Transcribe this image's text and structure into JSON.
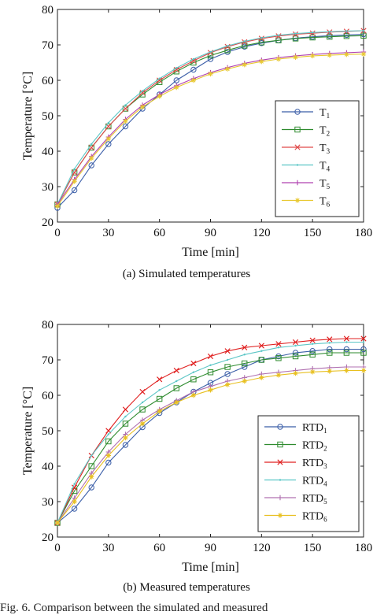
{
  "chart_data": [
    {
      "type": "line",
      "caption": "(a) Simulated temperatures",
      "xlabel": "Time [min]",
      "ylabel": "Temperature [°C]",
      "xlim": [
        0,
        180
      ],
      "ylim": [
        20,
        80
      ],
      "xticks": [
        0,
        30,
        60,
        90,
        120,
        150,
        180
      ],
      "yticks": [
        20,
        30,
        40,
        50,
        60,
        70,
        80
      ],
      "grid": false,
      "legend_position": "bottom-right",
      "series": [
        {
          "name": "T1",
          "base": "T",
          "sub": "1",
          "color": "#3b5ea8",
          "marker": "circle",
          "x": [
            0,
            10,
            20,
            30,
            40,
            50,
            60,
            70,
            80,
            90,
            100,
            110,
            120,
            130,
            140,
            150,
            160,
            170,
            180
          ],
          "y": [
            24,
            29,
            36,
            42,
            47,
            52,
            56,
            60,
            63,
            66,
            68,
            69.5,
            70.5,
            71.3,
            71.9,
            72.3,
            72.6,
            72.8,
            73
          ]
        },
        {
          "name": "T2",
          "base": "T",
          "sub": "2",
          "color": "#2e8b2e",
          "marker": "square",
          "x": [
            0,
            10,
            20,
            30,
            40,
            50,
            60,
            70,
            80,
            90,
            100,
            110,
            120,
            130,
            140,
            150,
            160,
            170,
            180
          ],
          "y": [
            25,
            34,
            41,
            47,
            52,
            56,
            59.5,
            62.5,
            65,
            67,
            68.5,
            69.8,
            70.7,
            71.3,
            71.8,
            72.1,
            72.3,
            72.5,
            72.6
          ]
        },
        {
          "name": "T3",
          "base": "T",
          "sub": "3",
          "color": "#e04a4a",
          "marker": "x",
          "x": [
            0,
            10,
            20,
            30,
            40,
            50,
            60,
            70,
            80,
            90,
            100,
            110,
            120,
            130,
            140,
            150,
            160,
            170,
            180
          ],
          "y": [
            25,
            34,
            41,
            47,
            52,
            56.5,
            60,
            63,
            65.5,
            67.8,
            69.5,
            70.8,
            71.8,
            72.5,
            73,
            73.3,
            73.6,
            73.8,
            74
          ]
        },
        {
          "name": "T4",
          "base": "T",
          "sub": "4",
          "color": "#5cc6c6",
          "marker": "dot",
          "x": [
            0,
            10,
            20,
            30,
            40,
            50,
            60,
            70,
            80,
            90,
            100,
            110,
            120,
            130,
            140,
            150,
            160,
            170,
            180
          ],
          "y": [
            25,
            35,
            42,
            48,
            53,
            57,
            60.5,
            63.5,
            66,
            68,
            69.7,
            71,
            72,
            72.7,
            73.2,
            73.5,
            73.7,
            73.9,
            74
          ]
        },
        {
          "name": "T5",
          "base": "T",
          "sub": "5",
          "color": "#b040b0",
          "marker": "plus",
          "x": [
            0,
            10,
            20,
            30,
            40,
            50,
            60,
            70,
            80,
            90,
            100,
            110,
            120,
            130,
            140,
            150,
            160,
            170,
            180
          ],
          "y": [
            25,
            32,
            38.5,
            44,
            49,
            53,
            56,
            58.5,
            60.5,
            62.2,
            63.6,
            64.8,
            65.7,
            66.4,
            66.9,
            67.3,
            67.6,
            67.8,
            68
          ]
        },
        {
          "name": "T6",
          "base": "T",
          "sub": "6",
          "color": "#e8c830",
          "marker": "star",
          "x": [
            0,
            10,
            20,
            30,
            40,
            50,
            60,
            70,
            80,
            90,
            100,
            110,
            120,
            130,
            140,
            150,
            160,
            170,
            180
          ],
          "y": [
            24.5,
            31.5,
            38,
            43.5,
            48.5,
            52.5,
            55.5,
            58,
            60,
            61.8,
            63.2,
            64.4,
            65.3,
            66,
            66.5,
            66.9,
            67.1,
            67.3,
            67.4
          ]
        }
      ]
    },
    {
      "type": "line",
      "caption": "(b) Measured temperatures",
      "xlabel": "Time [min]",
      "ylabel": "Temperature [°C]",
      "xlim": [
        0,
        180
      ],
      "ylim": [
        20,
        80
      ],
      "xticks": [
        0,
        30,
        60,
        90,
        120,
        150,
        180
      ],
      "yticks": [
        20,
        30,
        40,
        50,
        60,
        70,
        80
      ],
      "grid": false,
      "legend_position": "bottom-right",
      "series": [
        {
          "name": "RTD1",
          "base": "RTD",
          "sub": "1",
          "color": "#3b5ea8",
          "marker": "circle",
          "x": [
            0,
            10,
            20,
            30,
            40,
            50,
            60,
            70,
            80,
            90,
            100,
            110,
            120,
            130,
            140,
            150,
            160,
            170,
            180
          ],
          "y": [
            24,
            28,
            34,
            41,
            46,
            51,
            55,
            58,
            61,
            63.5,
            66,
            68,
            70,
            71,
            72,
            72.5,
            73,
            73,
            73
          ]
        },
        {
          "name": "RTD2",
          "base": "RTD",
          "sub": "2",
          "color": "#2e8b2e",
          "marker": "square",
          "x": [
            0,
            10,
            20,
            30,
            40,
            50,
            60,
            70,
            80,
            90,
            100,
            110,
            120,
            130,
            140,
            150,
            160,
            170,
            180
          ],
          "y": [
            24,
            33,
            40,
            47,
            52,
            56,
            59,
            62,
            64.5,
            66.5,
            68,
            69,
            70,
            70.5,
            71,
            71.5,
            72,
            72,
            72
          ]
        },
        {
          "name": "RTD3",
          "base": "RTD",
          "sub": "3",
          "color": "#e02020",
          "marker": "x",
          "x": [
            0,
            10,
            20,
            30,
            40,
            50,
            60,
            70,
            80,
            90,
            100,
            110,
            120,
            130,
            140,
            150,
            160,
            170,
            180
          ],
          "y": [
            24,
            34,
            43,
            50,
            56,
            61,
            64.5,
            67,
            69,
            71,
            72.5,
            73.5,
            74,
            74.5,
            75,
            75.5,
            75.8,
            76,
            76
          ]
        },
        {
          "name": "RTD4",
          "base": "RTD",
          "sub": "4",
          "color": "#5cc6c6",
          "marker": "dot",
          "x": [
            0,
            10,
            20,
            30,
            40,
            50,
            60,
            70,
            80,
            90,
            100,
            110,
            120,
            130,
            140,
            150,
            160,
            170,
            180
          ],
          "y": [
            24,
            35,
            43,
            49,
            54,
            58,
            61.5,
            64,
            66.5,
            68.5,
            70,
            71.5,
            72.5,
            73.5,
            74,
            74.5,
            74.8,
            75,
            75
          ]
        },
        {
          "name": "RTD5",
          "base": "RTD",
          "sub": "5",
          "color": "#b070b0",
          "marker": "plus",
          "x": [
            0,
            10,
            20,
            30,
            40,
            50,
            60,
            70,
            80,
            90,
            100,
            110,
            120,
            130,
            140,
            150,
            160,
            170,
            180
          ],
          "y": [
            24,
            31,
            38,
            44,
            49,
            53,
            56,
            58.5,
            61,
            62.5,
            64,
            65,
            66,
            66.5,
            67,
            67.5,
            67.8,
            68,
            68
          ]
        },
        {
          "name": "RTD6",
          "base": "RTD",
          "sub": "6",
          "color": "#e8c020",
          "marker": "star",
          "x": [
            0,
            10,
            20,
            30,
            40,
            50,
            60,
            70,
            80,
            90,
            100,
            110,
            120,
            130,
            140,
            150,
            160,
            170,
            180
          ],
          "y": [
            24,
            30,
            37,
            43,
            48,
            52,
            55.5,
            58,
            60,
            61.5,
            63,
            64,
            65,
            65.7,
            66.2,
            66.6,
            66.8,
            67,
            67
          ]
        }
      ]
    }
  ],
  "footer_text": "Fig. 6.   Comparison between the simulated and measured"
}
